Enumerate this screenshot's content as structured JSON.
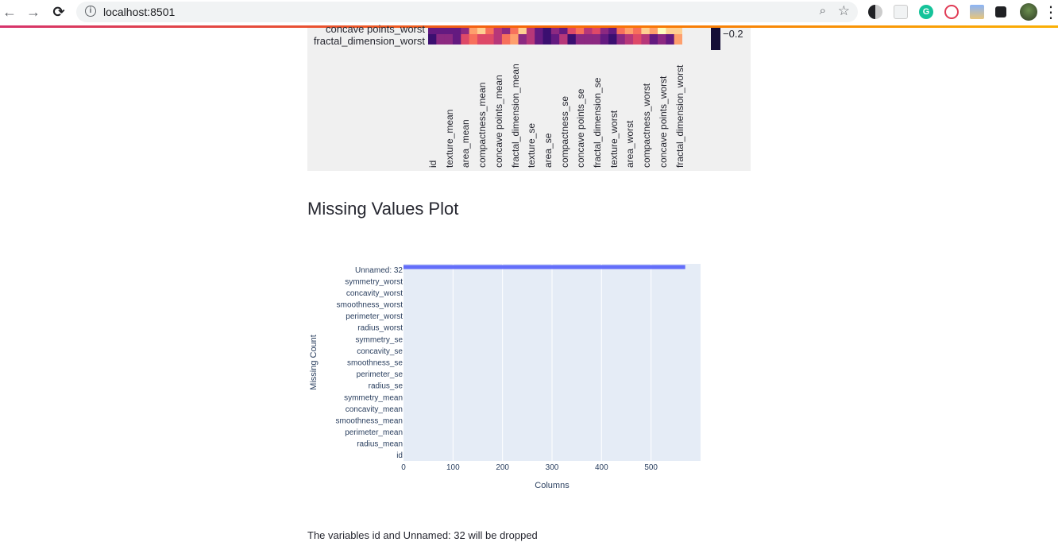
{
  "browser": {
    "url": "localhost:8501",
    "back_glyph": "←",
    "forward_glyph": "→",
    "reload_glyph": "⟳",
    "info_glyph": "i",
    "zoom_glyph": "⌕",
    "star_glyph": "☆",
    "menu_glyph": "⋮",
    "icons": [
      "back-icon",
      "forward-icon",
      "reload-icon",
      "info-icon",
      "zoom-icon",
      "bookmark-star-icon",
      "contrast-extension-icon",
      "reader-extension-icon",
      "grammarly-icon",
      "swirl-extension-icon",
      "image-extension-icon",
      "puzzle-extensions-icon",
      "profile-avatar",
      "more-menu-icon"
    ]
  },
  "heatmap": {
    "row_labels": [
      "concave points_worst",
      "fractal_dimension_worst"
    ],
    "column_labels": [
      "id",
      "texture_mean",
      "area_mean",
      "compactness_mean",
      "concave points_mean",
      "fractal_dimension_mean",
      "texture_se",
      "area_se",
      "compactness_se",
      "concave points_se",
      "fractal_dimension_se",
      "texture_worst",
      "area_worst",
      "compactness_worst",
      "concave points_worst",
      "fractal_dimension_worst"
    ],
    "colorbar_tick": "−0.2",
    "colorscale": [
      "#150e37",
      "#3b0f70",
      "#641a80",
      "#8c2981",
      "#b73779",
      "#de4968",
      "#f7705c",
      "#fe9f6d",
      "#fecf92",
      "#fcfdbf"
    ]
  },
  "section_title": "Missing Values Plot",
  "chart_data": {
    "type": "bar",
    "orientation": "horizontal",
    "categories": [
      "id",
      "radius_mean",
      "perimeter_mean",
      "smoothness_mean",
      "concavity_mean",
      "symmetry_mean",
      "radius_se",
      "perimeter_se",
      "smoothness_se",
      "concavity_se",
      "symmetry_se",
      "radius_worst",
      "perimeter_worst",
      "smoothness_worst",
      "concavity_worst",
      "symmetry_worst",
      "Unnamed: 32"
    ],
    "values": [
      0,
      0,
      0,
      0,
      0,
      0,
      0,
      0,
      0,
      0,
      0,
      0,
      0,
      0,
      0,
      0,
      569
    ],
    "xlabel": "Columns",
    "ylabel": "Missing Count",
    "x_ticks": [
      0,
      100,
      200,
      300,
      400,
      500
    ],
    "xlim": [
      0,
      600
    ],
    "grid": true,
    "bar_color": "#636efa",
    "plot_bg": "#e5ecf6"
  },
  "footer_text": "The variables id and Unnamed: 32 will be dropped"
}
